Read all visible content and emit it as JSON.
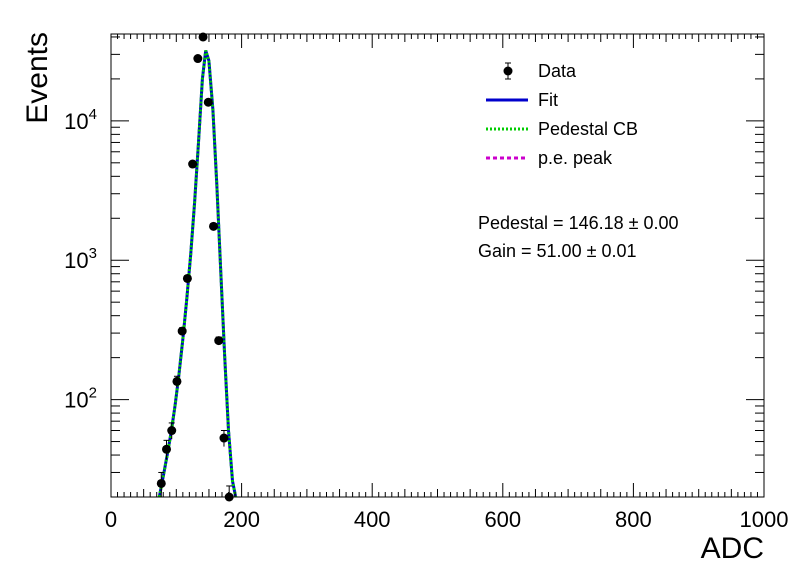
{
  "chart_data": {
    "type": "scatter",
    "xlabel": "ADC",
    "ylabel": "Events",
    "xlim": [
      0,
      1000
    ],
    "ylim": [
      20,
      42000
    ],
    "yscale": "log",
    "x_ticks": [
      0,
      200,
      400,
      600,
      800,
      1000
    ],
    "y_ticks": [
      {
        "value": 100,
        "label": "10",
        "exp": "2"
      },
      {
        "value": 1000,
        "label": "10",
        "exp": "3"
      },
      {
        "value": 10000,
        "label": "10",
        "exp": "4"
      }
    ],
    "grid": false,
    "legend_position": "top-right",
    "legend": [
      {
        "name": "Data",
        "style": "marker",
        "color": "#000000"
      },
      {
        "name": "Fit",
        "style": "solid",
        "color": "#0000cc"
      },
      {
        "name": "Pedestal CB",
        "style": "dotted",
        "color": "#00cc00"
      },
      {
        "name": "p.e. peak",
        "style": "dashed",
        "color": "#cc00cc"
      }
    ],
    "annotations": [
      {
        "text": "Pedestal = 146.18",
        "pm": "±",
        "err": "0.00"
      },
      {
        "text": "Gain = 51.00",
        "pm": "±",
        "err": "0.01"
      }
    ],
    "series": [
      {
        "name": "Data",
        "kind": "points",
        "x": [
          77,
          85,
          93,
          101,
          109,
          117,
          125,
          133,
          141,
          149,
          157,
          165,
          173,
          181
        ],
        "y": [
          25,
          44,
          60,
          135,
          310,
          740,
          4900,
          28000,
          40000,
          13600,
          1750,
          265,
          53,
          20
        ],
        "yerr": [
          5,
          7,
          8,
          12,
          18,
          27,
          70,
          170,
          200,
          117,
          42,
          16,
          7,
          4
        ]
      },
      {
        "name": "Fit",
        "kind": "line",
        "color": "#0000cc",
        "x": [
          74,
          80,
          86,
          92,
          98,
          104,
          110,
          116,
          122,
          128,
          134,
          140,
          145,
          150,
          156,
          162,
          168,
          174,
          180,
          186,
          191
        ],
        "y": [
          20,
          28,
          40,
          58,
          90,
          150,
          270,
          520,
          1100,
          2600,
          7000,
          20000,
          32000,
          27000,
          12000,
          3500,
          850,
          210,
          60,
          26,
          20
        ]
      },
      {
        "name": "Pedestal CB",
        "kind": "line",
        "color": "#00cc00",
        "x": [
          74,
          80,
          86,
          92,
          98,
          104,
          110,
          116,
          122,
          128,
          134,
          140,
          145,
          150,
          156,
          162,
          168,
          174,
          180,
          186,
          191
        ],
        "y": [
          20,
          28,
          40,
          58,
          90,
          150,
          270,
          520,
          1100,
          2600,
          7000,
          20000,
          32000,
          27000,
          12000,
          3500,
          850,
          210,
          60,
          26,
          20
        ]
      }
    ]
  }
}
